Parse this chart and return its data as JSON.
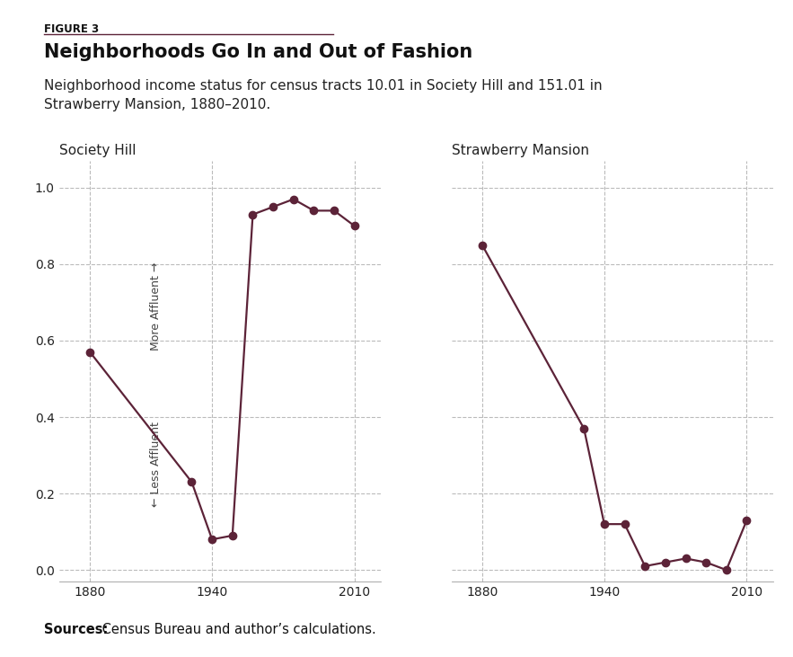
{
  "figure_label": "FIGURE 3",
  "title": "Neighborhoods Go In and Out of Fashion",
  "subtitle": "Neighborhood income status for census tracts 10.01 in Society Hill and 151.01 in\nStrawberry Mansion, 1880–2010.",
  "sources_bold": "Sources:",
  "sources_rest": " Census Bureau and author’s calculations.",
  "society_hill_label": "Society Hill",
  "strawberry_mansion_label": "Strawberry Mansion",
  "society_hill_years": [
    1880,
    1930,
    1940,
    1950,
    1960,
    1970,
    1980,
    1990,
    2000,
    2010
  ],
  "society_hill_values": [
    0.57,
    0.23,
    0.08,
    0.09,
    0.93,
    0.95,
    0.97,
    0.94,
    0.94,
    0.9
  ],
  "strawberry_mansion_years": [
    1880,
    1930,
    1940,
    1950,
    1960,
    1970,
    1980,
    1990,
    2000,
    2010
  ],
  "strawberry_mansion_values": [
    0.85,
    0.37,
    0.12,
    0.12,
    0.01,
    0.02,
    0.03,
    0.02,
    0.0,
    0.13
  ],
  "line_color": "#5c2338",
  "marker_color": "#5c2338",
  "marker_size": 6,
  "line_width": 1.6,
  "ylim": [
    -0.03,
    1.07
  ],
  "yticks": [
    0.0,
    0.2,
    0.4,
    0.6,
    0.8,
    1.0
  ],
  "xticks": [
    1880,
    1940,
    2010
  ],
  "grid_color": "#bbbbbb",
  "bg_color": "#ffffff",
  "rule_color": "#5c2338",
  "more_affluent_text": "More Affluent →",
  "less_affluent_text": "← Less Affluent",
  "figure_label_fontsize": 8.5,
  "title_fontsize": 15,
  "subtitle_fontsize": 11,
  "sublabel_fontsize": 11,
  "tick_fontsize": 10,
  "annotation_fontsize": 9,
  "source_fontsize": 10.5
}
